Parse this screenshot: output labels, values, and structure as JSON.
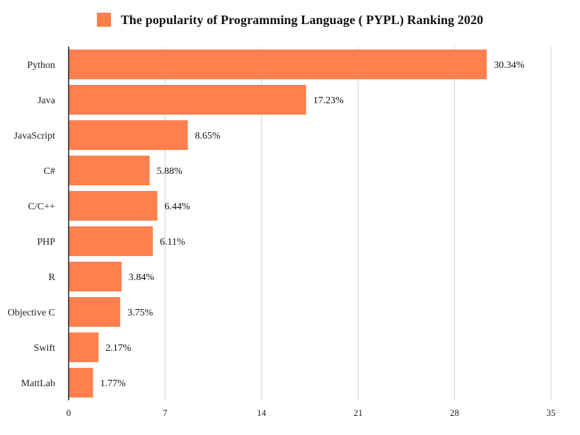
{
  "legend_label": "The popularity of Programming Language ( PYPL) Ranking 2020",
  "colors": {
    "bar": "#FF7F4E",
    "grid": "#d0d0d0",
    "axis": "#222222"
  },
  "chart_data": {
    "type": "bar",
    "orientation": "horizontal",
    "categories": [
      "Python",
      "Java",
      "JavaScript",
      "C#",
      "C/C++",
      "PHP",
      "R",
      "Objective C",
      "Swift",
      "MattLab"
    ],
    "series": [
      {
        "name": "The popularity of Programming Language ( PYPL) Ranking 2020",
        "values": [
          30.34,
          17.23,
          8.65,
          5.88,
          6.44,
          6.11,
          3.84,
          3.75,
          2.17,
          1.77
        ],
        "labels": [
          "30.34%",
          "17.23%",
          "8.65%",
          "5.88%",
          "6.44%",
          "6.11%",
          "3.84%",
          "3.75%",
          "2.17%",
          "1.77%"
        ]
      }
    ],
    "xlim": [
      0,
      35
    ],
    "xticks": [
      0,
      7,
      14,
      21,
      28,
      35
    ],
    "grid": true,
    "legend_position": "top"
  }
}
